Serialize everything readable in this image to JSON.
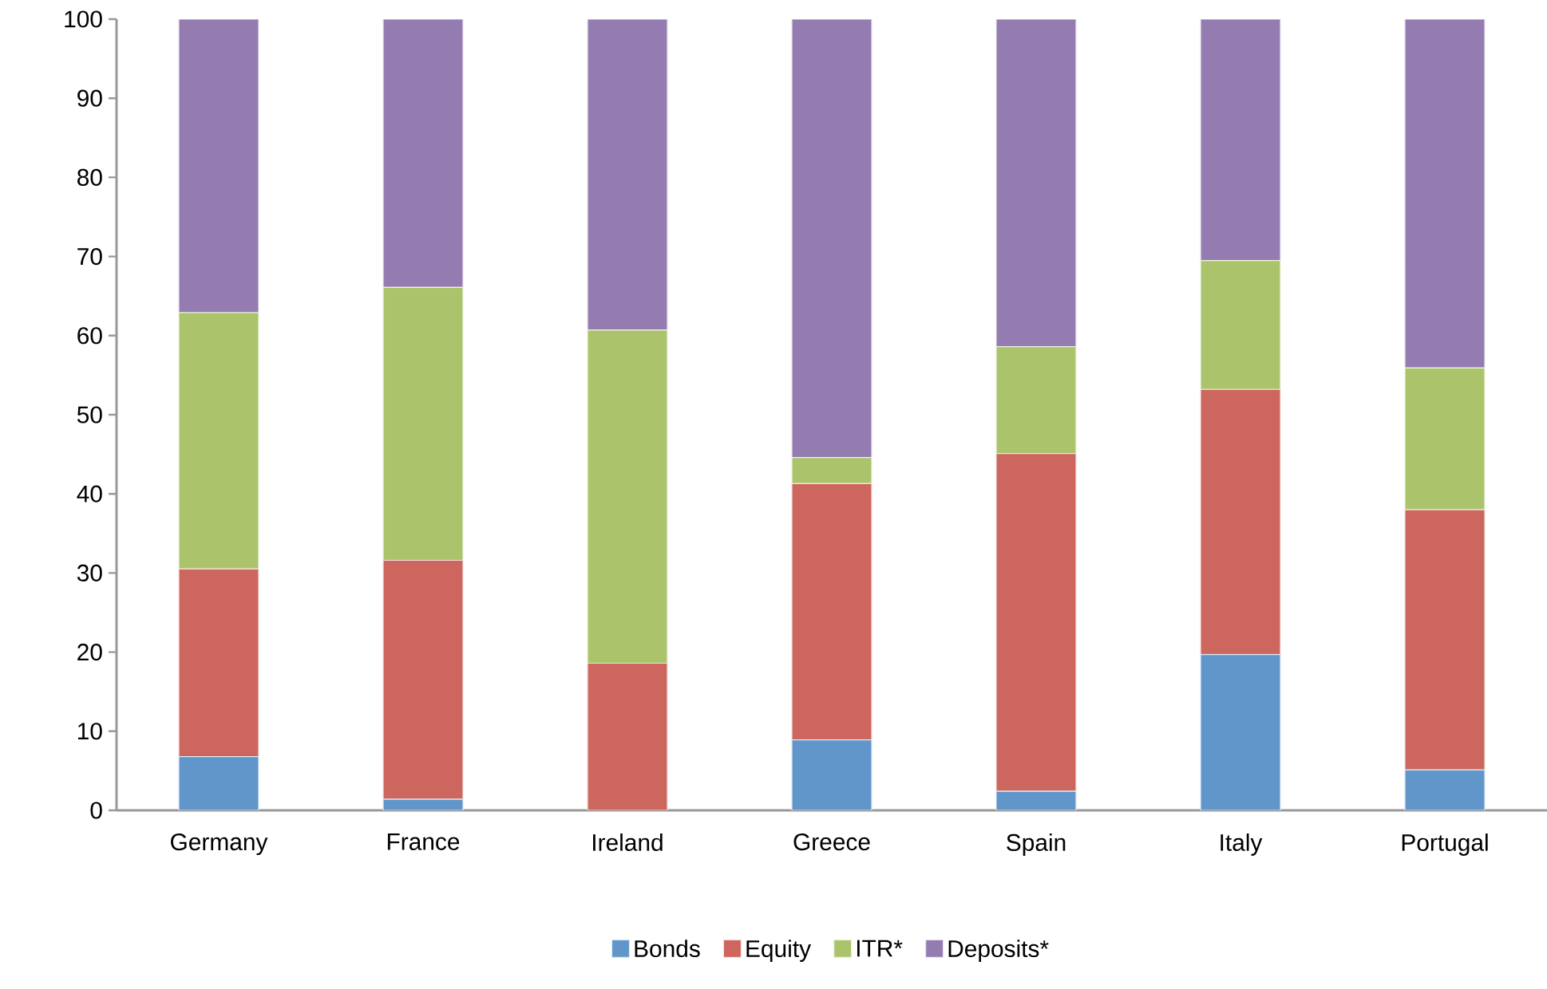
{
  "chart_data": {
    "type": "bar",
    "stacked": true,
    "categories": [
      "Germany",
      "France",
      "Ireland",
      "Greece",
      "Spain",
      "Italy",
      "Portugal"
    ],
    "series": [
      {
        "name": "Bonds",
        "color": "#6096c9",
        "values": [
          6.8,
          1.4,
          null,
          8.9,
          2.4,
          19.7,
          5.1
        ]
      },
      {
        "name": "Equity",
        "color": "#cd665f",
        "values": [
          23.7,
          30.2,
          18.6,
          32.4,
          42.7,
          33.5,
          32.9
        ]
      },
      {
        "name": "ITR*",
        "color": "#abc46b",
        "values": [
          32.4,
          34.5,
          42.1,
          3.3,
          13.5,
          16.3,
          17.9
        ]
      },
      {
        "name": "Deposits*",
        "color": "#947cb1",
        "values": [
          37.1,
          33.9,
          39.3,
          55.4,
          41.4,
          30.5,
          44.1
        ]
      }
    ],
    "ylim": [
      0,
      100
    ],
    "yticks": [
      0,
      10,
      20,
      30,
      40,
      50,
      60,
      70,
      80,
      90,
      100
    ],
    "legend": "bottom"
  }
}
